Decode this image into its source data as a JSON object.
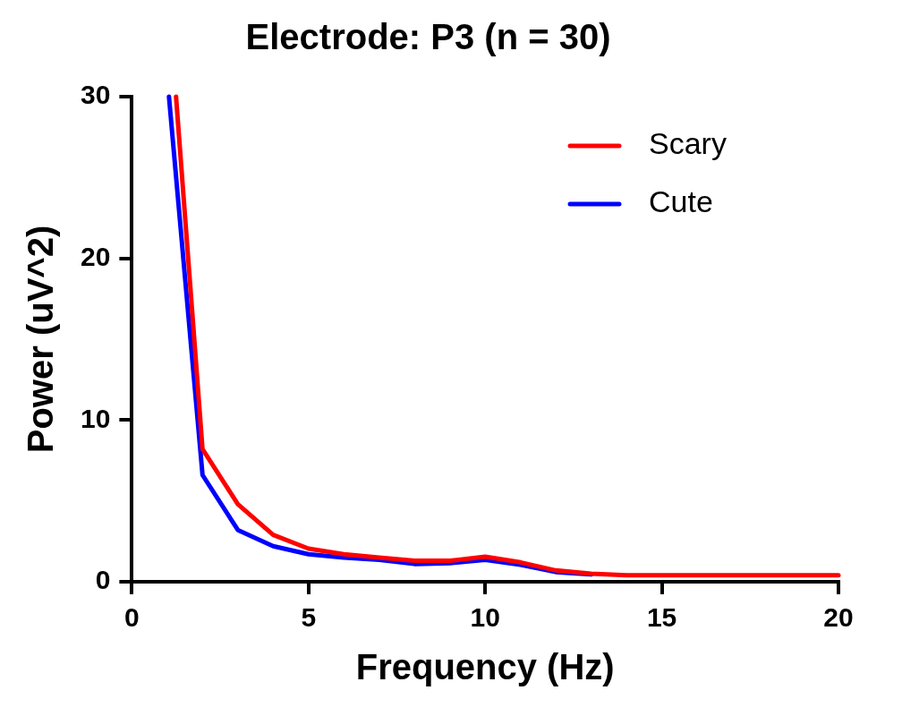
{
  "chart_data": {
    "type": "line",
    "title": "Electrode: P3 (n = 30)",
    "xlabel": "Frequency (Hz)",
    "ylabel": "Power (uV^2)",
    "xlim": [
      0,
      20
    ],
    "xticks": [
      0,
      5,
      10,
      15,
      20
    ],
    "ylim": [
      0,
      30
    ],
    "yticks": [
      0,
      10,
      20,
      30
    ],
    "grid": false,
    "legend": "top right",
    "marker": "none",
    "line_style": "solid",
    "series": [
      {
        "name": "Scary",
        "color": "#ff0000",
        "x": [
          1.25,
          2,
          3,
          4,
          5,
          6,
          7,
          8,
          9,
          10,
          11,
          12,
          13,
          14,
          15,
          16,
          17,
          18,
          19,
          20
        ],
        "values": [
          30,
          8.2,
          4.8,
          2.9,
          2.05,
          1.7,
          1.5,
          1.3,
          1.3,
          1.55,
          1.2,
          0.7,
          0.5,
          0.4,
          0.4,
          0.4,
          0.4,
          0.4,
          0.4,
          0.4
        ]
      },
      {
        "name": "Cute",
        "color": "#0000ff",
        "x": [
          1.05,
          2,
          3,
          4,
          5,
          6,
          7,
          8,
          9,
          10,
          11,
          12,
          13
        ],
        "values": [
          30,
          6.6,
          3.2,
          2.2,
          1.7,
          1.5,
          1.35,
          1.1,
          1.15,
          1.35,
          1.05,
          0.6,
          0.45
        ]
      }
    ]
  }
}
